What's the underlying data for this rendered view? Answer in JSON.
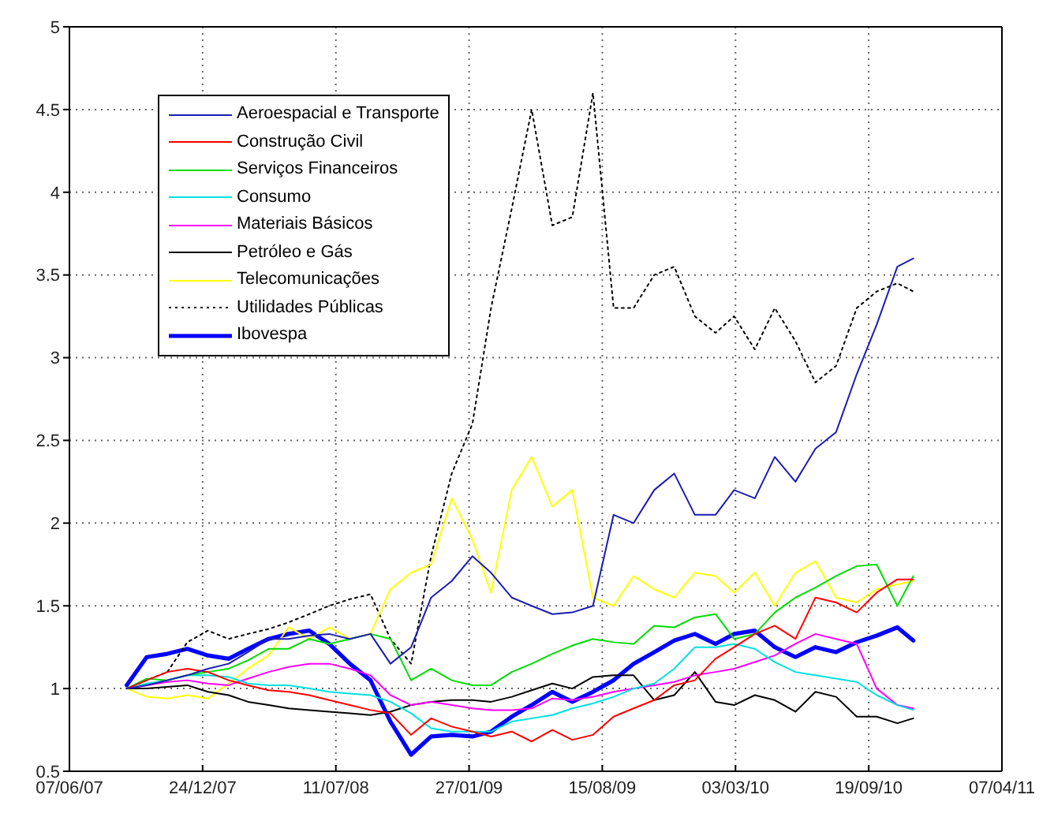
{
  "chart_data": {
    "type": "line",
    "x": [
      "2007-09-01",
      "2007-10-01",
      "2007-11-01",
      "2007-12-01",
      "2008-01-01",
      "2008-02-01",
      "2008-03-01",
      "2008-04-01",
      "2008-05-01",
      "2008-06-01",
      "2008-07-01",
      "2008-08-01",
      "2008-09-01",
      "2008-10-01",
      "2008-11-01",
      "2008-12-01",
      "2009-01-01",
      "2009-02-01",
      "2009-03-01",
      "2009-04-01",
      "2009-05-01",
      "2009-06-01",
      "2009-07-01",
      "2009-08-01",
      "2009-09-01",
      "2009-10-01",
      "2009-11-01",
      "2009-12-01",
      "2010-01-01",
      "2010-02-01",
      "2010-03-01",
      "2010-04-01",
      "2010-05-01",
      "2010-06-01",
      "2010-07-01",
      "2010-08-01",
      "2010-09-01",
      "2010-10-01",
      "2010-11-01",
      "2010-11-25"
    ],
    "series": [
      {
        "name": "Aeroespacial e Transporte",
        "color": "#1c1cb4",
        "values": [
          1.0,
          1.02,
          1.05,
          1.08,
          1.12,
          1.15,
          1.22,
          1.3,
          1.3,
          1.32,
          1.33,
          1.3,
          1.33,
          1.15,
          1.25,
          1.55,
          1.65,
          1.8,
          1.7,
          1.55,
          1.5,
          1.45,
          1.46,
          1.5,
          2.05,
          2.0,
          2.2,
          2.3,
          2.05,
          2.05,
          2.2,
          2.15,
          2.4,
          2.25,
          2.45,
          2.55,
          2.9,
          3.2,
          3.55,
          3.6
        ]
      },
      {
        "name": "Construção Civil",
        "color": "#ff0000",
        "values": [
          1.0,
          1.05,
          1.1,
          1.12,
          1.1,
          1.05,
          1.02,
          0.99,
          0.98,
          0.96,
          0.93,
          0.9,
          0.87,
          0.85,
          0.72,
          0.82,
          0.77,
          0.74,
          0.71,
          0.74,
          0.68,
          0.75,
          0.69,
          0.72,
          0.83,
          0.88,
          0.93,
          1.02,
          1.05,
          1.18,
          1.25,
          1.33,
          1.38,
          1.3,
          1.55,
          1.52,
          1.46,
          1.58,
          1.66,
          1.66
        ]
      },
      {
        "name": "Serviços Financeiros",
        "color": "#00dd00",
        "values": [
          1.0,
          1.06,
          1.05,
          1.08,
          1.1,
          1.12,
          1.17,
          1.24,
          1.24,
          1.3,
          1.27,
          1.3,
          1.33,
          1.3,
          1.05,
          1.12,
          1.05,
          1.02,
          1.02,
          1.1,
          1.15,
          1.21,
          1.26,
          1.3,
          1.28,
          1.27,
          1.38,
          1.37,
          1.43,
          1.45,
          1.3,
          1.33,
          1.46,
          1.55,
          1.61,
          1.68,
          1.74,
          1.75,
          1.5,
          1.68
        ]
      },
      {
        "name": "Consumo",
        "color": "#00e0e0",
        "values": [
          1.0,
          1.03,
          1.05,
          1.08,
          1.08,
          1.07,
          1.03,
          1.02,
          1.02,
          1.0,
          0.98,
          0.97,
          0.96,
          0.92,
          0.85,
          0.76,
          0.74,
          0.74,
          0.74,
          0.8,
          0.82,
          0.84,
          0.88,
          0.91,
          0.95,
          1.0,
          1.03,
          1.12,
          1.25,
          1.25,
          1.27,
          1.24,
          1.16,
          1.1,
          1.08,
          1.06,
          1.04,
          0.96,
          0.9,
          0.87
        ]
      },
      {
        "name": "Materiais Básicos",
        "color": "#ff00ff",
        "values": [
          1.0,
          1.02,
          1.04,
          1.05,
          1.03,
          1.02,
          1.06,
          1.1,
          1.13,
          1.15,
          1.15,
          1.12,
          1.08,
          0.96,
          0.9,
          0.92,
          0.9,
          0.88,
          0.87,
          0.87,
          0.88,
          0.94,
          0.93,
          0.95,
          0.98,
          1.0,
          1.02,
          1.04,
          1.08,
          1.1,
          1.12,
          1.16,
          1.2,
          1.27,
          1.33,
          1.3,
          1.27,
          1.0,
          0.9,
          0.88
        ]
      },
      {
        "name": "Petróleo e Gás",
        "color": "#000000",
        "values": [
          1.0,
          1.0,
          1.01,
          1.02,
          0.98,
          0.96,
          0.92,
          0.9,
          0.88,
          0.87,
          0.86,
          0.85,
          0.84,
          0.86,
          0.9,
          0.92,
          0.93,
          0.93,
          0.92,
          0.95,
          0.99,
          1.03,
          1.0,
          1.07,
          1.08,
          1.08,
          0.93,
          0.96,
          1.1,
          0.92,
          0.9,
          0.96,
          0.93,
          0.86,
          0.98,
          0.95,
          0.83,
          0.83,
          0.79,
          0.82
        ]
      },
      {
        "name": "Telecomunicações",
        "color": "#ffff00",
        "values": [
          1.0,
          0.95,
          0.94,
          0.96,
          0.94,
          1.03,
          1.12,
          1.2,
          1.37,
          1.3,
          1.37,
          1.3,
          1.33,
          1.6,
          1.7,
          1.75,
          2.15,
          1.9,
          1.58,
          2.2,
          2.4,
          2.1,
          2.2,
          1.55,
          1.5,
          1.68,
          1.6,
          1.55,
          1.7,
          1.68,
          1.58,
          1.7,
          1.5,
          1.7,
          1.77,
          1.55,
          1.52,
          1.6,
          1.63,
          1.65
        ]
      },
      {
        "name": "Utilidades Públicas",
        "color": "#000000",
        "line_style": "dotted",
        "values": [
          1.0,
          1.05,
          1.1,
          1.28,
          1.35,
          1.3,
          1.33,
          1.36,
          1.4,
          1.45,
          1.5,
          1.54,
          1.57,
          1.3,
          1.15,
          1.8,
          2.3,
          2.6,
          3.3,
          3.9,
          4.5,
          3.8,
          3.85,
          4.6,
          3.3,
          3.3,
          3.5,
          3.55,
          3.25,
          3.15,
          3.25,
          3.05,
          3.3,
          3.1,
          2.85,
          2.95,
          3.3,
          3.4,
          3.45,
          3.4
        ]
      },
      {
        "name": "Ibovespa",
        "color": "#0000ff",
        "values": [
          1.02,
          1.19,
          1.21,
          1.24,
          1.2,
          1.18,
          1.24,
          1.3,
          1.33,
          1.35,
          1.27,
          1.15,
          1.05,
          0.8,
          0.6,
          0.71,
          0.72,
          0.71,
          0.74,
          0.83,
          0.9,
          0.98,
          0.92,
          0.98,
          1.05,
          1.15,
          1.22,
          1.29,
          1.33,
          1.27,
          1.33,
          1.35,
          1.25,
          1.19,
          1.25,
          1.22,
          1.28,
          1.32,
          1.37,
          1.29
        ]
      }
    ],
    "xlim": [
      "2007-06-07",
      "2011-04-07"
    ],
    "xticks": [
      {
        "value": "2007-06-07",
        "label": "07/06/07"
      },
      {
        "value": "2007-12-24",
        "label": "24/12/07"
      },
      {
        "value": "2008-07-11",
        "label": "11/07/08"
      },
      {
        "value": "2009-01-27",
        "label": "27/01/09"
      },
      {
        "value": "2009-08-15",
        "label": "15/08/09"
      },
      {
        "value": "2010-03-03",
        "label": "03/03/10"
      },
      {
        "value": "2010-09-19",
        "label": "19/09/10"
      },
      {
        "value": "2011-04-07",
        "label": "07/04/11"
      }
    ],
    "ylim": [
      0.5,
      5
    ],
    "yticks": [
      0.5,
      1,
      1.5,
      2,
      2.5,
      3,
      3.5,
      4,
      4.5,
      5
    ],
    "grid": true,
    "legend": "top left",
    "line_style": "solid",
    "marker": "none"
  }
}
